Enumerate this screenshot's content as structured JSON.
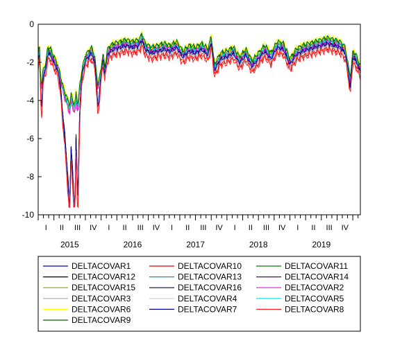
{
  "chart_data": {
    "type": "line",
    "title": "",
    "xlabel": "",
    "ylabel": "",
    "ylim": [
      -10,
      0
    ],
    "yticks": [
      0,
      -2,
      -4,
      -6,
      -8,
      -10
    ],
    "grid": false,
    "legend_placement": "bottom",
    "x_start": 2015.0,
    "x_end": 2020.12,
    "quarter_labels": [
      "I",
      "II",
      "III",
      "IV",
      "I",
      "II",
      "III",
      "IV",
      "I",
      "II",
      "III",
      "IV",
      "I",
      "II",
      "III",
      "IV",
      "I",
      "II",
      "III",
      "IV",
      "I"
    ],
    "year_labels": [
      "2015",
      "2016",
      "2017",
      "2018",
      "2019"
    ],
    "series_base": {
      "x": [
        2015.0,
        2015.02,
        2015.05,
        2015.08,
        2015.12,
        2015.15,
        2015.2,
        2015.25,
        2015.3,
        2015.35,
        2015.38,
        2015.42,
        2015.45,
        2015.48,
        2015.5,
        2015.52,
        2015.55,
        2015.58,
        2015.6,
        2015.63,
        2015.66,
        2015.7,
        2015.75,
        2015.8,
        2015.85,
        2015.9,
        2015.95,
        2016.0,
        2016.03,
        2016.06,
        2016.1,
        2016.15,
        2016.2,
        2016.3,
        2016.4,
        2016.5,
        2016.6,
        2016.65,
        2016.7,
        2016.8,
        2016.9,
        2017.0,
        2017.1,
        2017.2,
        2017.3,
        2017.4,
        2017.5,
        2017.6,
        2017.7,
        2017.75,
        2017.8,
        2017.9,
        2018.0,
        2018.1,
        2018.2,
        2018.3,
        2018.4,
        2018.5,
        2018.6,
        2018.7,
        2018.8,
        2018.9,
        2019.0,
        2019.1,
        2019.2,
        2019.3,
        2019.4,
        2019.5,
        2019.6,
        2019.7,
        2019.8,
        2019.88,
        2019.92,
        2019.96,
        2020.0,
        2020.05,
        2020.12
      ],
      "y": [
        -1.9,
        -1.2,
        -4.0,
        -2.5,
        -2.3,
        -1.4,
        -1.5,
        -1.9,
        -2.2,
        -2.9,
        -3.7,
        -4.5,
        -5.2,
        -5.9,
        -6.9,
        -4.8,
        -5.6,
        -7.0,
        -4.5,
        -6.5,
        -3.8,
        -2.5,
        -1.8,
        -1.6,
        -1.4,
        -1.9,
        -3.8,
        -2.5,
        -1.7,
        -2.5,
        -1.5,
        -1.3,
        -1.2,
        -1.1,
        -1.0,
        -1.1,
        -1.0,
        -0.7,
        -1.2,
        -1.4,
        -1.3,
        -1.2,
        -1.3,
        -1.1,
        -1.6,
        -1.3,
        -1.4,
        -1.2,
        -1.5,
        -0.8,
        -2.3,
        -1.7,
        -1.6,
        -1.4,
        -1.9,
        -1.5,
        -2.1,
        -1.7,
        -1.3,
        -1.7,
        -1.1,
        -1.2,
        -2.0,
        -1.5,
        -1.3,
        -1.2,
        -1.1,
        -1.0,
        -0.9,
        -1.0,
        -1.1,
        -1.4,
        -2.2,
        -3.1,
        -1.6,
        -1.8,
        -2.4
      ]
    },
    "series": [
      {
        "name": "DELTACOVAR1",
        "color": "#0000cc",
        "offset": -0.15,
        "phase": 0.3,
        "amp": 0.05
      },
      {
        "name": "DELTACOVAR10",
        "color": "#dd0000",
        "offset": -0.35,
        "phase": 1.1,
        "amp": 0.12
      },
      {
        "name": "DELTACOVAR11",
        "color": "#007700",
        "offset": 0.15,
        "phase": 2.2,
        "amp": 0.1
      },
      {
        "name": "DELTACOVAR12",
        "color": "#000000",
        "offset": -0.05,
        "phase": 0.8,
        "amp": 0.08
      },
      {
        "name": "DELTACOVAR13",
        "color": "#009999",
        "offset": 0.05,
        "phase": 3.0,
        "amp": 0.1
      },
      {
        "name": "DELTACOVAR14",
        "color": "#660066",
        "offset": -0.1,
        "phase": 1.7,
        "amp": 0.08
      },
      {
        "name": "DELTACOVAR15",
        "color": "#999900",
        "offset": 0.05,
        "phase": 2.7,
        "amp": 0.09
      },
      {
        "name": "DELTACOVAR16",
        "color": "#000033",
        "offset": -0.08,
        "phase": 0.5,
        "amp": 0.07
      },
      {
        "name": "DELTACOVAR2",
        "color": "#ff00ff",
        "offset": 0.0,
        "phase": 4.1,
        "amp": 0.11
      },
      {
        "name": "DELTACOVAR3",
        "color": "#aaaaaa",
        "offset": -0.2,
        "phase": 3.6,
        "amp": 0.09
      },
      {
        "name": "DELTACOVAR4",
        "color": "#cccccc",
        "offset": -0.25,
        "phase": 2.0,
        "amp": 0.1
      },
      {
        "name": "DELTACOVAR5",
        "color": "#00dddd",
        "offset": 0.1,
        "phase": 5.0,
        "amp": 0.12
      },
      {
        "name": "DELTACOVAR6",
        "color": "#ffff00",
        "offset": 0.25,
        "phase": 1.4,
        "amp": 0.1
      },
      {
        "name": "DELTACOVAR7",
        "color": "#000099",
        "offset": -0.12,
        "phase": 4.5,
        "amp": 0.08
      },
      {
        "name": "DELTACOVAR8",
        "color": "#ff2222",
        "offset": -0.45,
        "phase": 0.1,
        "amp": 0.14
      },
      {
        "name": "DELTACOVAR9",
        "color": "#006600",
        "offset": 0.2,
        "phase": 3.3,
        "amp": 0.09
      }
    ]
  }
}
